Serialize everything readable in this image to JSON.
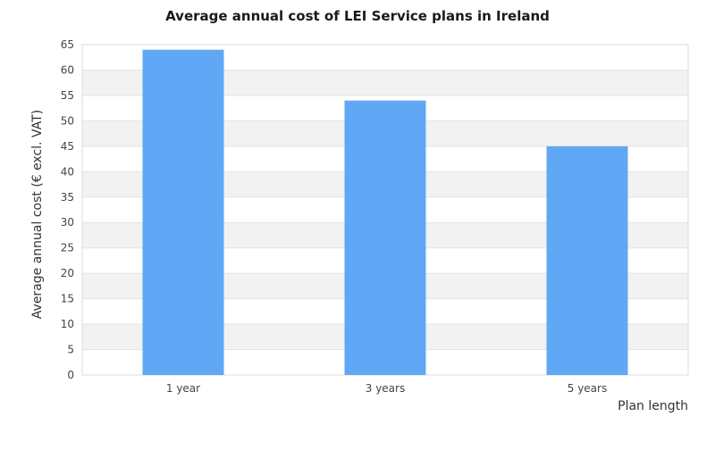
{
  "chart_data": {
    "type": "bar",
    "title": "Average annual cost of LEI Service plans in Ireland",
    "xlabel": "Plan length",
    "ylabel": "Average annual cost (€ excl. VAT)",
    "categories": [
      "1 year",
      "3 years",
      "5 years"
    ],
    "values": [
      64,
      54,
      45
    ],
    "ylim": [
      0,
      65
    ],
    "yticks": [
      0,
      5,
      10,
      15,
      20,
      25,
      30,
      35,
      40,
      45,
      50,
      55,
      60,
      65
    ],
    "grid": true,
    "bar_color": "#60a8f5",
    "band_color": "#f2f2f2"
  }
}
